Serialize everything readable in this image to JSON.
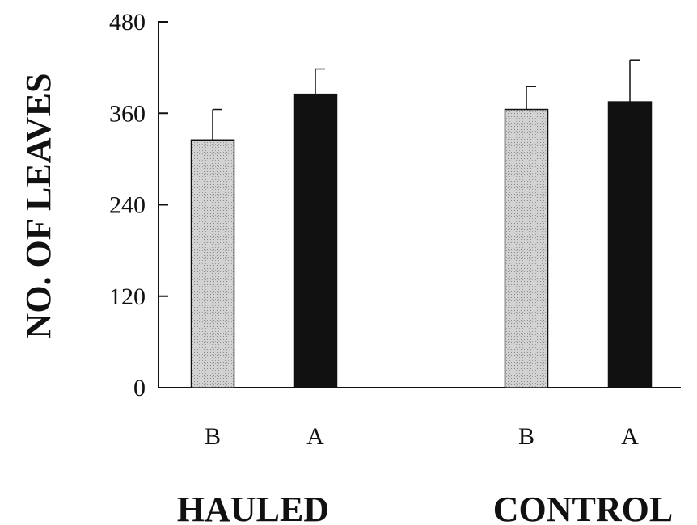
{
  "chart_data": {
    "type": "bar",
    "title": "",
    "xlabel": "",
    "ylabel": "NO. OF LEAVES",
    "ylim": [
      0,
      480
    ],
    "yticks": [
      0,
      120,
      240,
      360,
      480
    ],
    "grid": false,
    "groups": [
      {
        "label": "HAULED",
        "bars": [
          {
            "label": "B",
            "value": 325,
            "error": 40,
            "color": "#c4c4c4"
          },
          {
            "label": "A",
            "value": 385,
            "error": 33,
            "color": "#111111"
          }
        ]
      },
      {
        "label": "CONTROL",
        "bars": [
          {
            "label": "B",
            "value": 365,
            "error": 30,
            "color": "#c4c4c4"
          },
          {
            "label": "A",
            "value": 375,
            "error": 55,
            "color": "#111111"
          }
        ]
      }
    ]
  }
}
